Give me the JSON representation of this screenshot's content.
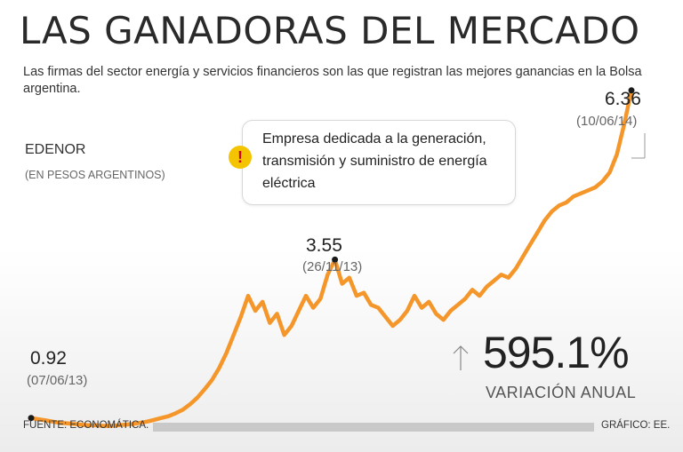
{
  "title": "LAS GANADORAS DEL MERCADO",
  "subtitle": "Las firmas del sector energía y servicios financieros son las que registran las mejores ganancias en la Bolsa argentina.",
  "company": "EDENOR",
  "unit": "(EN PESOS ARGENTINOS)",
  "callout": {
    "icon": "exclamation-icon",
    "text": "Empresa dedicada a la generación, transmisión y suministro de energía eléctrica"
  },
  "annotations": {
    "start": {
      "value": "0.92",
      "date": "(07/06/13)"
    },
    "mid": {
      "value": "3.55",
      "date": "(26/11/13)"
    },
    "end": {
      "value": "6.36",
      "date": "(10/06/14)"
    }
  },
  "variation": {
    "value": "595.1%",
    "label": "VARIACIÓN ANUAL"
  },
  "footer": {
    "source": "FUENTE: ECONOMÁTICA.",
    "credit": "GRÁFICO: EE."
  },
  "colors": {
    "line": "#f5962a",
    "marker": "#1a1a1a",
    "footer_bar": "#c9c9c9",
    "alert": "#f5c400"
  },
  "chart_data": {
    "type": "line",
    "title": "LAS GANADORAS DEL MERCADO",
    "ylim": [
      0.4,
      6.8
    ],
    "grid": false,
    "legend": "none",
    "series": [
      {
        "values": [
          0.92,
          0.9,
          0.88,
          0.86,
          0.84,
          0.83,
          0.82,
          0.81,
          0.8,
          0.8,
          0.79,
          0.79,
          0.8,
          0.81,
          0.82,
          0.84,
          0.86,
          0.89,
          0.92,
          0.95,
          1.0,
          1.06,
          1.15,
          1.26,
          1.4,
          1.55,
          1.75,
          2.0,
          2.3,
          2.6,
          2.95,
          2.7,
          2.85,
          2.5,
          2.65,
          2.3,
          2.45,
          2.7,
          2.95,
          2.75,
          2.9,
          3.3,
          3.55,
          3.15,
          3.25,
          2.95,
          3.0,
          2.8,
          2.75,
          2.6,
          2.45,
          2.55,
          2.7,
          2.95,
          2.75,
          2.85,
          2.65,
          2.55,
          2.7,
          2.8,
          2.9,
          3.05,
          2.95,
          3.1,
          3.2,
          3.3,
          3.25,
          3.4,
          3.6,
          3.8,
          4.0,
          4.2,
          4.35,
          4.45,
          4.5,
          4.6,
          4.65,
          4.7,
          4.75,
          4.85,
          5.0,
          5.3,
          5.8,
          6.36
        ]
      }
    ],
    "points": [
      {
        "label": "0.92 (07/06/13)",
        "value": 0.92
      },
      {
        "label": "3.55 (26/11/13)",
        "value": 3.55
      },
      {
        "label": "6.36 (10/06/14)",
        "value": 6.36
      }
    ]
  }
}
